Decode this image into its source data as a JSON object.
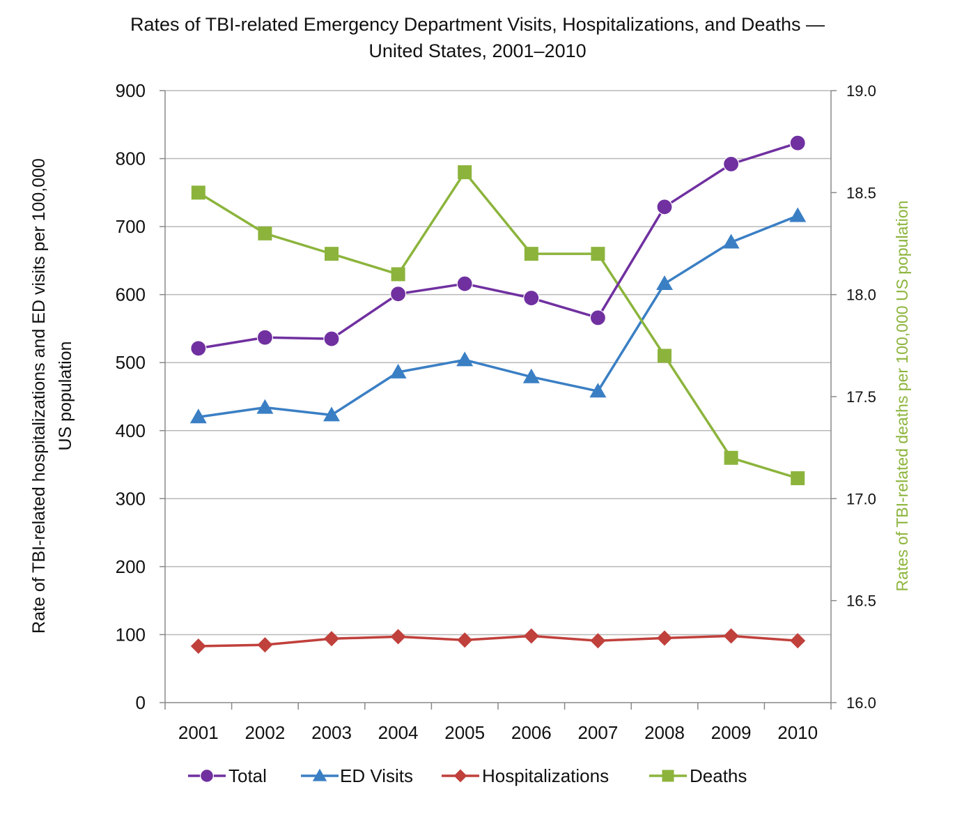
{
  "chart_data": {
    "type": "line",
    "title_lines": [
      "Rates of TBI-related Emergency Department Visits, Hospitalizations, and Deaths —",
      "United States, 2001–2010"
    ],
    "categories": [
      "2001",
      "2002",
      "2003",
      "2004",
      "2005",
      "2006",
      "2007",
      "2008",
      "2009",
      "2010"
    ],
    "y_left": {
      "label_lines": [
        "Rate of TBI-related hospitalizations and ED visits per 100,000",
        "US population"
      ],
      "range": [
        0,
        900
      ],
      "ticks": [
        0,
        100,
        200,
        300,
        400,
        500,
        600,
        700,
        800,
        900
      ],
      "tick_labels": [
        "0",
        "100",
        "200",
        "300",
        "400",
        "500",
        "600",
        "700",
        "800",
        "900"
      ]
    },
    "y_right": {
      "label": "Rates of TBI-related deaths per 100,000 US population",
      "range": [
        16.0,
        19.0
      ],
      "ticks": [
        16.0,
        16.5,
        17.0,
        17.5,
        18.0,
        18.5,
        19.0
      ],
      "tick_labels": [
        "16.0",
        "16.5",
        "17.0",
        "17.5",
        "18.0",
        "18.5",
        "19.0"
      ],
      "color": "#8cb43c"
    },
    "grid": true,
    "series": [
      {
        "name": "Total",
        "axis": "left",
        "marker": "circle",
        "color": "#7030a0",
        "values": [
          521,
          537,
          535,
          601,
          616,
          595,
          566,
          729,
          792,
          823
        ]
      },
      {
        "name": "ED Visits",
        "axis": "left",
        "marker": "triangle",
        "color": "#3a7fc4",
        "values": [
          420,
          434,
          423,
          486,
          504,
          479,
          458,
          616,
          677,
          716
        ]
      },
      {
        "name": "Hospitalizations",
        "axis": "left",
        "marker": "diamond",
        "color": "#c0403c",
        "values": [
          83,
          85,
          94,
          97,
          92,
          98,
          91,
          95,
          98,
          91
        ]
      },
      {
        "name": "Deaths",
        "axis": "right",
        "marker": "square",
        "color": "#8cb43c",
        "values": [
          18.5,
          18.3,
          18.2,
          18.1,
          18.6,
          18.2,
          18.2,
          17.7,
          17.2,
          17.1
        ]
      }
    ],
    "legend_position": "bottom"
  }
}
